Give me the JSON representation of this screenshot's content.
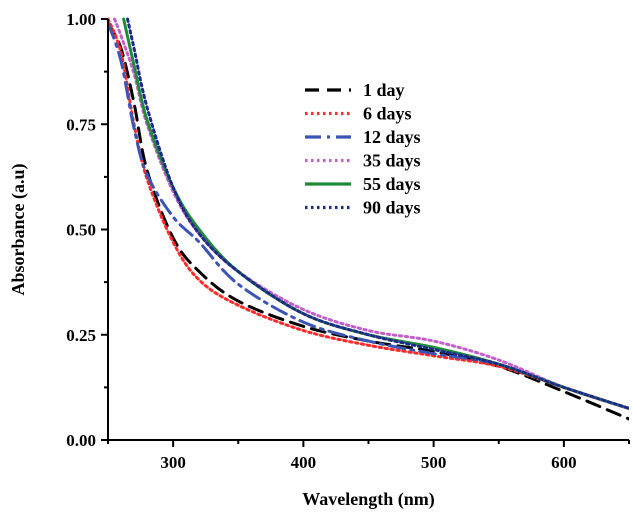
{
  "chart_data": {
    "type": "line",
    "xlabel": "Wavelength (nm)",
    "ylabel": "Absorbance (a.u)",
    "xlim": [
      250,
      650
    ],
    "ylim": [
      0,
      1.0
    ],
    "x_ticks": [
      300,
      400,
      500,
      600
    ],
    "x_tick_labels": [
      "300",
      "400",
      "500",
      "600"
    ],
    "y_ticks": [
      0,
      0.25,
      0.5,
      0.75,
      1.0
    ],
    "y_tick_labels": [
      "0.00",
      "0.25",
      "0.50",
      "0.75",
      "1.00"
    ],
    "legend_position": "top-right",
    "series": [
      {
        "name": "1 day",
        "color": "#000000",
        "style": "dashed",
        "x": [
          250,
          260,
          270,
          280,
          300,
          320,
          350,
          400,
          450,
          500,
          550,
          600,
          650
        ],
        "y": [
          0.99,
          0.93,
          0.8,
          0.64,
          0.48,
          0.4,
          0.33,
          0.27,
          0.235,
          0.21,
          0.175,
          0.115,
          0.05
        ]
      },
      {
        "name": "6 days",
        "color": "#ff2a2a",
        "style": "dotted",
        "x": [
          250,
          260,
          270,
          280,
          300,
          320,
          350,
          400,
          450,
          500,
          550,
          600,
          650
        ],
        "y": [
          1.0,
          0.92,
          0.75,
          0.62,
          0.47,
          0.38,
          0.32,
          0.26,
          0.225,
          0.2,
          0.175,
          0.125,
          0.075
        ]
      },
      {
        "name": "12 days",
        "color": "#3c55b5",
        "style": "dashdot",
        "x": [
          250,
          260,
          270,
          280,
          300,
          320,
          350,
          400,
          450,
          500,
          550,
          600,
          650
        ],
        "y": [
          0.99,
          0.9,
          0.74,
          0.63,
          0.53,
          0.47,
          0.37,
          0.28,
          0.235,
          0.205,
          0.18,
          0.125,
          0.075
        ]
      },
      {
        "name": "35 days",
        "color": "#c060c8",
        "style": "dotted",
        "x": [
          255,
          260,
          270,
          280,
          300,
          320,
          350,
          400,
          450,
          500,
          550,
          600,
          650
        ],
        "y": [
          1.0,
          0.96,
          0.87,
          0.75,
          0.59,
          0.49,
          0.4,
          0.31,
          0.26,
          0.235,
          0.19,
          0.125,
          0.075
        ]
      },
      {
        "name": "55 days",
        "color": "#1f8a3a",
        "style": "solid",
        "x": [
          262,
          270,
          280,
          300,
          320,
          350,
          400,
          450,
          500,
          550,
          600,
          650
        ],
        "y": [
          1.0,
          0.89,
          0.76,
          0.6,
          0.5,
          0.4,
          0.3,
          0.25,
          0.22,
          0.18,
          0.125,
          0.075
        ]
      },
      {
        "name": "90 days",
        "color": "#1e2a8a",
        "style": "dotted",
        "x": [
          265,
          270,
          280,
          300,
          320,
          350,
          400,
          450,
          500,
          550,
          600,
          650
        ],
        "y": [
          1.0,
          0.93,
          0.79,
          0.6,
          0.49,
          0.4,
          0.3,
          0.25,
          0.215,
          0.18,
          0.125,
          0.075
        ]
      }
    ]
  }
}
